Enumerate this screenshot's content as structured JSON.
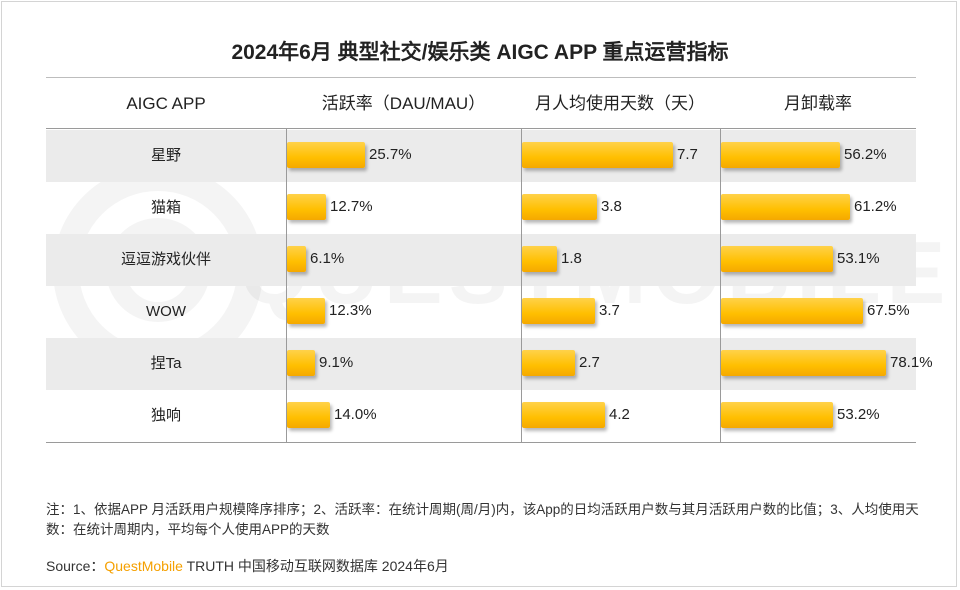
{
  "title": "2024年6月 典型社交/娱乐类 AIGC APP 重点运营指标",
  "headers": {
    "app": "AIGC APP",
    "col1": "活跃率（DAU/MAU）",
    "col2": "月人均使用天数（天）",
    "col3": "月卸载率"
  },
  "chart_data": {
    "type": "table",
    "title": "2024年6月 典型社交/娱乐类 AIGC APP 重点运营指标",
    "categories": [
      "星野",
      "猫箱",
      "逗逗游戏伙伴",
      "WOW",
      "捏Ta",
      "独响"
    ],
    "series": [
      {
        "name": "活跃率（DAU/MAU）",
        "values": [
          25.7,
          12.7,
          6.1,
          12.3,
          9.1,
          14.0
        ],
        "labels": [
          "25.7%",
          "12.7%",
          "6.1%",
          "12.3%",
          "9.1%",
          "14.0%"
        ],
        "max": 100
      },
      {
        "name": "月人均使用天数（天）",
        "values": [
          7.7,
          3.8,
          1.8,
          3.7,
          2.7,
          4.2
        ],
        "labels": [
          "7.7",
          "3.8",
          "1.8",
          "3.7",
          "2.7",
          "4.2"
        ],
        "max": 30
      },
      {
        "name": "月卸载率",
        "values": [
          56.2,
          61.2,
          53.1,
          67.5,
          78.1,
          53.2
        ],
        "labels": [
          "56.2%",
          "61.2%",
          "53.1%",
          "67.5%",
          "78.1%",
          "53.2%"
        ],
        "max": 100
      }
    ]
  },
  "notes": "注：1、依据APP 月活跃用户规模降序排序；2、活跃率：在统计周期(周/月)内，该App的日均活跃用户数与其月活跃用户数的比值；3、人均使用天数：在统计周期内，平均每个人使用APP的天数",
  "source": {
    "prefix": "Source：",
    "brand": "QuestMobile",
    "rest": " TRUTH 中国移动互联网数据库 2024年6月"
  },
  "watermark": "QUESTMOBILE",
  "colors": {
    "bar": "#ffbf00",
    "brand": "#f5a000",
    "alt_row": "#ebebeb"
  }
}
